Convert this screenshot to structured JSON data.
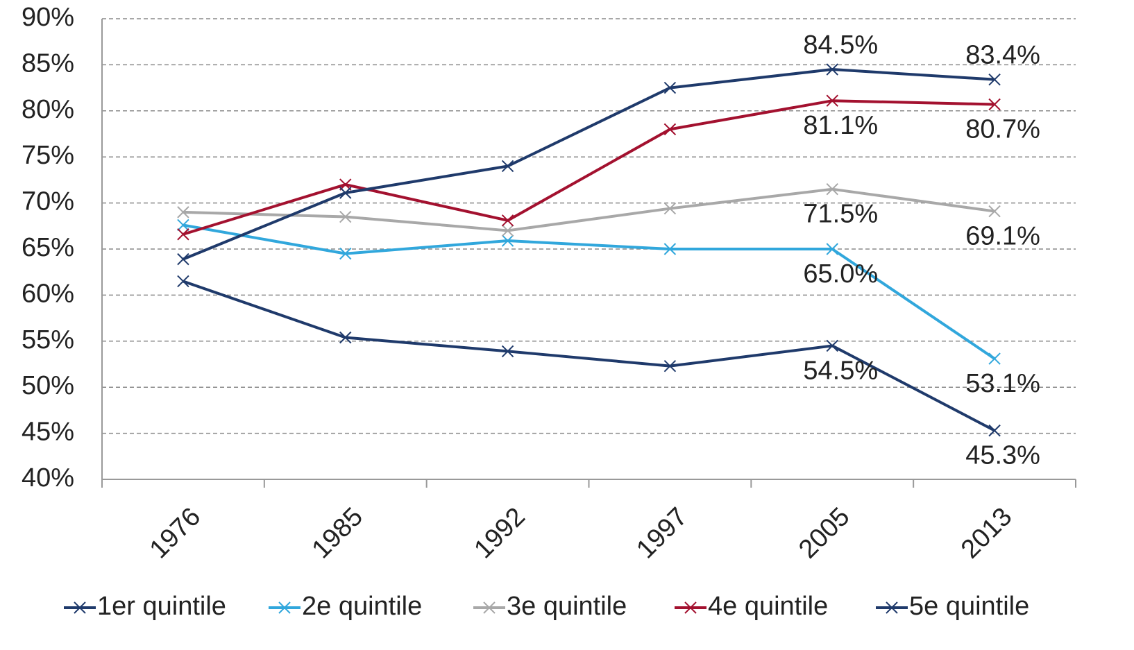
{
  "chart_data": {
    "type": "line",
    "categories": [
      "1976",
      "1985",
      "1992",
      "1997",
      "2005",
      "2013"
    ],
    "series": [
      {
        "name": "1er quintile",
        "color": "#1f3a6b",
        "values": [
          61.5,
          55.4,
          53.9,
          52.3,
          54.5,
          45.3
        ],
        "value_labels": [
          null,
          null,
          null,
          null,
          "54.5%",
          "45.3%"
        ]
      },
      {
        "name": "2e quintile",
        "color": "#31a7dc",
        "values": [
          67.6,
          64.5,
          65.9,
          65.0,
          65.0,
          53.1
        ],
        "value_labels": [
          null,
          null,
          null,
          null,
          "65.0%",
          "53.1%"
        ]
      },
      {
        "name": "3e quintile",
        "color": "#a8a8a8",
        "values": [
          69.0,
          68.5,
          67.0,
          69.4,
          71.5,
          69.1
        ],
        "value_labels": [
          null,
          null,
          null,
          null,
          "71.5%",
          "69.1%"
        ]
      },
      {
        "name": "4e quintile",
        "color": "#a3112f",
        "values": [
          66.6,
          72.0,
          68.1,
          78.0,
          81.1,
          80.7
        ],
        "value_labels": [
          null,
          null,
          null,
          null,
          "81.1%",
          "80.7%"
        ]
      },
      {
        "name": "5e quintile",
        "color": "#1f3a6b",
        "values": [
          63.9,
          71.1,
          74.0,
          82.5,
          84.5,
          83.4
        ],
        "value_labels": [
          null,
          null,
          null,
          null,
          "84.5%",
          "83.4%"
        ]
      }
    ],
    "ylim": [
      40,
      90
    ],
    "yticks": [
      {
        "value": 40,
        "label": "40%"
      },
      {
        "value": 45,
        "label": "45%"
      },
      {
        "value": 50,
        "label": "50%"
      },
      {
        "value": 55,
        "label": "55%"
      },
      {
        "value": 60,
        "label": "60%"
      },
      {
        "value": 65,
        "label": "65%"
      },
      {
        "value": 70,
        "label": "70%"
      },
      {
        "value": 75,
        "label": "75%"
      },
      {
        "value": 80,
        "label": "80%"
      },
      {
        "value": 85,
        "label": "85%"
      },
      {
        "value": 90,
        "label": "90%"
      }
    ],
    "grid": true,
    "legend": "bottom"
  }
}
